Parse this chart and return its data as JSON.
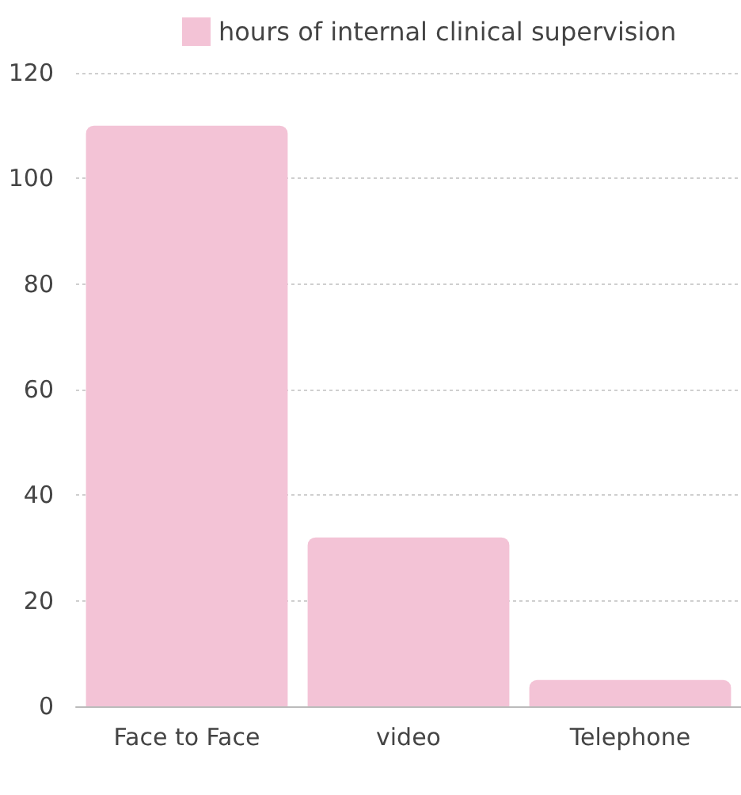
{
  "chart_data": {
    "type": "bar",
    "categories": [
      "Face to Face",
      "video",
      "Telephone"
    ],
    "series": [
      {
        "name": "hours of internal clinical supervision",
        "color": "#f3c3d6",
        "values": [
          110,
          32,
          5
        ]
      }
    ],
    "ylim": [
      0,
      120
    ],
    "yticks": [
      0,
      20,
      40,
      60,
      80,
      100,
      120
    ],
    "grid": "y",
    "legend": "top"
  }
}
